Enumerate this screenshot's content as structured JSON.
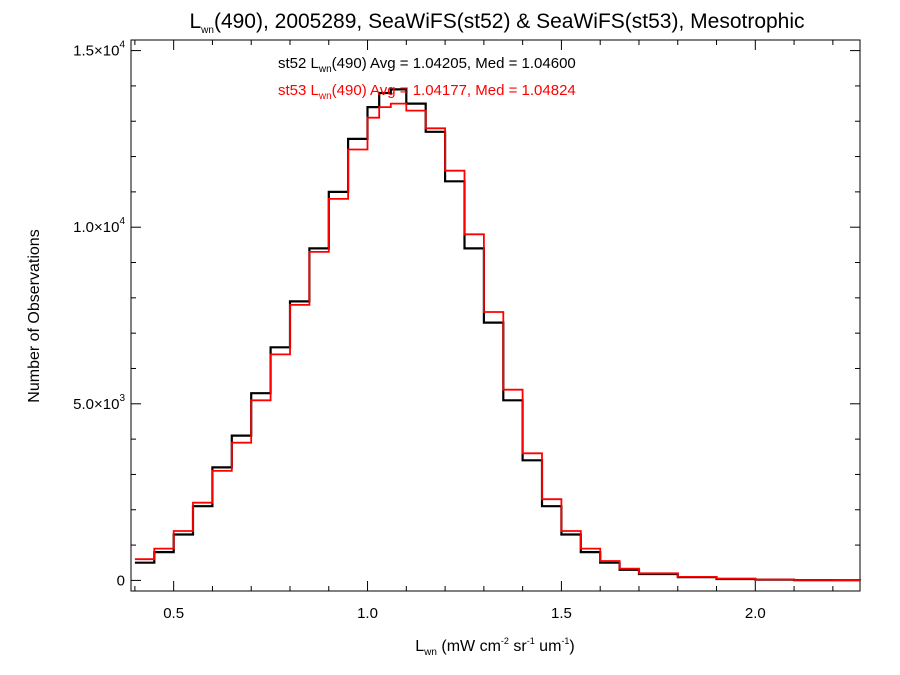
{
  "chart_data": {
    "type": "line",
    "title": {
      "main_prefix": "L",
      "main_sub": "wn",
      "main_suffix": "(490), 2005289, SeaWiFS(st52) & SeaWiFS(st53), Mesotrophic"
    },
    "xlabel": {
      "prefix": "L",
      "sub": "wn",
      "units_a": " (mW cm",
      "exp_a": "-2",
      "units_b": " sr",
      "exp_b": "-1",
      "units_c": " um",
      "exp_c": "-1",
      "units_d": ")"
    },
    "ylabel": "Number of Observations",
    "xlim": [
      0.39,
      2.27
    ],
    "ylim": [
      -300,
      15300
    ],
    "xticks": [
      {
        "value": 0.5,
        "label": "0.5"
      },
      {
        "value": 1.0,
        "label": "1.0"
      },
      {
        "value": 1.5,
        "label": "1.5"
      },
      {
        "value": 2.0,
        "label": "2.0"
      }
    ],
    "yticks": [
      {
        "value": 0,
        "mant": "0",
        "exp": ""
      },
      {
        "value": 5000,
        "mant": "5.0×10",
        "exp": "3"
      },
      {
        "value": 10000,
        "mant": "1.0×10",
        "exp": "4"
      },
      {
        "value": 15000,
        "mant": "1.5×10",
        "exp": "4"
      }
    ],
    "legend": [
      {
        "color": "#000000",
        "prefix": "st52 L",
        "sub": "wn",
        "rest": "(490) Avg = 1.04205, Med = 1.04600"
      },
      {
        "color": "#ff0000",
        "prefix": "st53 L",
        "sub": "wn",
        "rest": "(490) Avg = 1.04177, Med = 1.04824"
      }
    ],
    "series": [
      {
        "color": "#000000",
        "x": [
          0.4,
          0.45,
          0.5,
          0.55,
          0.6,
          0.65,
          0.7,
          0.75,
          0.8,
          0.85,
          0.9,
          0.95,
          1.0,
          1.03,
          1.06,
          1.1,
          1.15,
          1.2,
          1.25,
          1.3,
          1.35,
          1.4,
          1.45,
          1.5,
          1.55,
          1.6,
          1.65,
          1.7,
          1.8,
          1.9,
          2.0,
          2.1,
          2.2,
          2.27
        ],
        "y": [
          500,
          800,
          1300,
          2100,
          3200,
          4100,
          5300,
          6600,
          7900,
          9400,
          11000,
          12500,
          13400,
          13800,
          13900,
          13500,
          12700,
          11300,
          9400,
          7300,
          5100,
          3400,
          2100,
          1300,
          800,
          500,
          300,
          180,
          90,
          40,
          20,
          10,
          5,
          0
        ]
      },
      {
        "color": "#ff0000",
        "x": [
          0.4,
          0.45,
          0.5,
          0.55,
          0.6,
          0.65,
          0.7,
          0.75,
          0.8,
          0.85,
          0.9,
          0.95,
          1.0,
          1.03,
          1.06,
          1.1,
          1.15,
          1.2,
          1.25,
          1.3,
          1.35,
          1.4,
          1.45,
          1.5,
          1.55,
          1.6,
          1.65,
          1.7,
          1.8,
          1.9,
          2.0,
          2.1,
          2.2,
          2.27
        ],
        "y": [
          600,
          900,
          1400,
          2200,
          3100,
          3900,
          5100,
          6400,
          7800,
          9300,
          10800,
          12200,
          13100,
          13400,
          13500,
          13300,
          12800,
          11600,
          9800,
          7600,
          5400,
          3600,
          2300,
          1400,
          900,
          550,
          330,
          200,
          100,
          50,
          25,
          12,
          6,
          0
        ]
      }
    ]
  }
}
